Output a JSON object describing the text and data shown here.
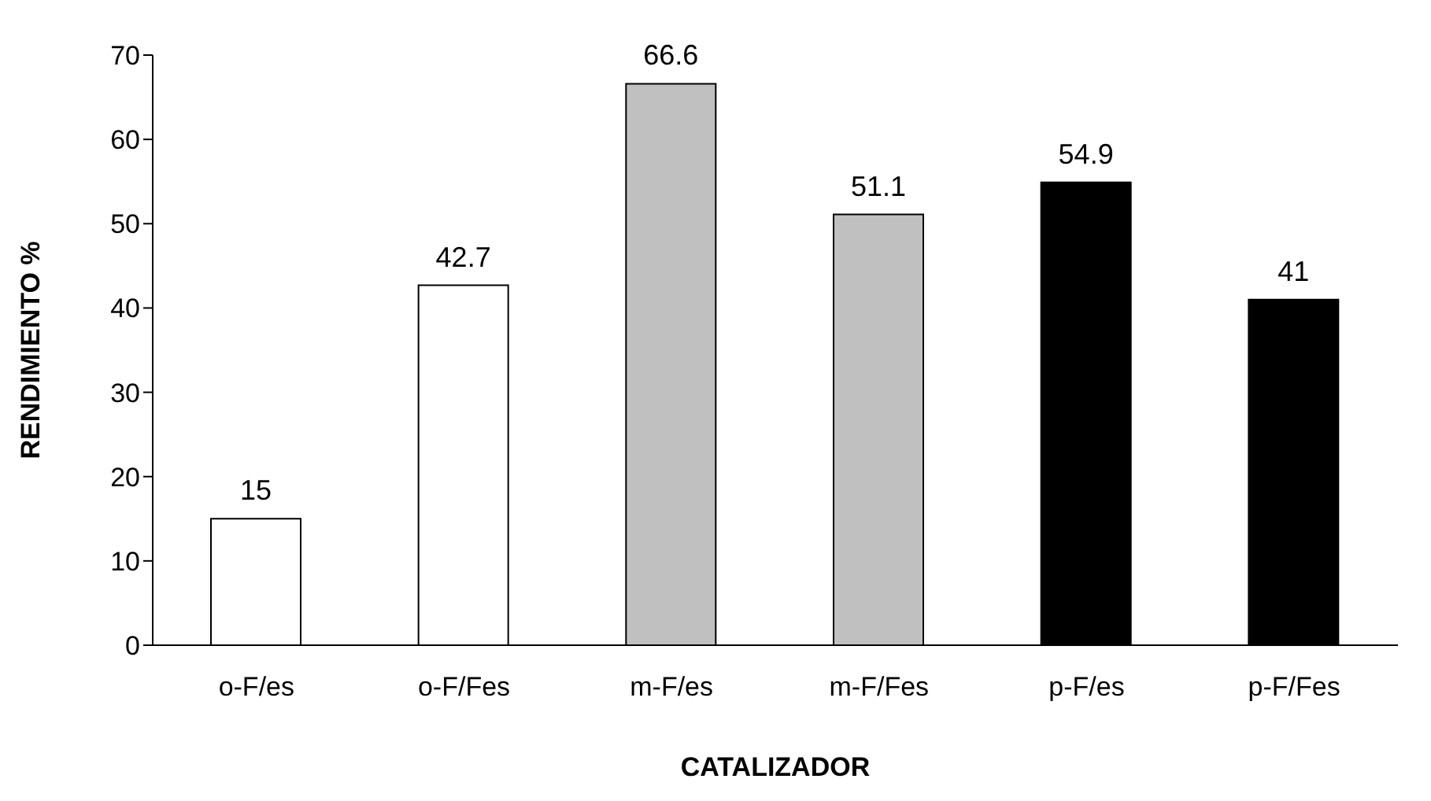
{
  "chart_data": {
    "type": "bar",
    "xlabel": "CATALIZADOR",
    "ylabel": "RENDIMIENTO %",
    "categories": [
      "o-F/es",
      "o-F/Fes",
      "m-F/es",
      "m-F/Fes",
      "p-F/es",
      "p-F/Fes"
    ],
    "values": [
      15,
      42.7,
      66.6,
      51.1,
      54.9,
      41
    ],
    "colors": [
      "#ffffff",
      "#ffffff",
      "#c0c0c0",
      "#c0c0c0",
      "#000000",
      "#000000"
    ],
    "ylim": [
      0,
      70
    ],
    "yticks": [
      0,
      10,
      20,
      30,
      40,
      50,
      60,
      70
    ],
    "grid": false,
    "data_labels": true
  }
}
